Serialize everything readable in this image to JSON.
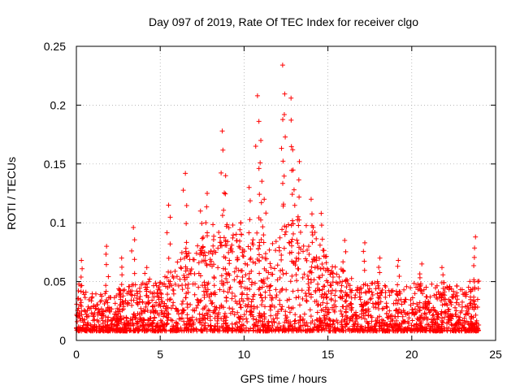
{
  "chart_data": {
    "type": "scatter",
    "title": "Day 097 of 2019, Rate Of TEC Index for receiver clgo",
    "xlabel": "GPS time / hours",
    "ylabel": "ROTI / TECUs",
    "xlim": [
      0,
      25
    ],
    "ylim": [
      0,
      0.25
    ],
    "xticks": [
      0,
      5,
      10,
      15,
      20,
      25
    ],
    "xtick_labels": [
      "0",
      "5",
      "10",
      "15",
      "20",
      "25"
    ],
    "yticks": [
      0,
      0.05,
      0.1,
      0.15,
      0.2,
      0.25
    ],
    "ytick_labels": [
      "0",
      "0.05",
      "0.1",
      "0.15",
      "0.2",
      "0.25"
    ],
    "grid": true,
    "marker": "+",
    "series": [
      {
        "name": "ROTI",
        "color": "#ff0000",
        "baseline_profile": {
          "x": [
            0,
            1,
            2,
            3,
            4,
            5,
            6,
            7,
            8,
            9,
            10,
            11,
            12,
            13,
            14,
            15,
            16,
            17,
            18,
            19,
            20,
            21,
            22,
            23,
            24
          ],
          "typical_max": [
            0.05,
            0.04,
            0.04,
            0.05,
            0.055,
            0.05,
            0.07,
            0.09,
            0.1,
            0.1,
            0.1,
            0.1,
            0.09,
            0.11,
            0.1,
            0.07,
            0.06,
            0.05,
            0.05,
            0.045,
            0.05,
            0.05,
            0.05,
            0.045,
            0.06
          ]
        },
        "peaks": [
          {
            "x": 0.3,
            "y": 0.068
          },
          {
            "x": 1.8,
            "y": 0.08
          },
          {
            "x": 2.7,
            "y": 0.07
          },
          {
            "x": 3.4,
            "y": 0.096
          },
          {
            "x": 4.2,
            "y": 0.062
          },
          {
            "x": 5.5,
            "y": 0.115
          },
          {
            "x": 6.5,
            "y": 0.142
          },
          {
            "x": 7.4,
            "y": 0.11
          },
          {
            "x": 7.8,
            "y": 0.125
          },
          {
            "x": 8.7,
            "y": 0.178
          },
          {
            "x": 8.9,
            "y": 0.14
          },
          {
            "x": 9.8,
            "y": 0.1
          },
          {
            "x": 10.3,
            "y": 0.13
          },
          {
            "x": 10.8,
            "y": 0.208
          },
          {
            "x": 11.0,
            "y": 0.17
          },
          {
            "x": 11.2,
            "y": 0.12
          },
          {
            "x": 12.3,
            "y": 0.234
          },
          {
            "x": 12.4,
            "y": 0.192
          },
          {
            "x": 12.8,
            "y": 0.206
          },
          {
            "x": 12.9,
            "y": 0.162
          },
          {
            "x": 13.3,
            "y": 0.152
          },
          {
            "x": 14.0,
            "y": 0.12
          },
          {
            "x": 14.6,
            "y": 0.108
          },
          {
            "x": 16.0,
            "y": 0.085
          },
          {
            "x": 17.2,
            "y": 0.083
          },
          {
            "x": 18.1,
            "y": 0.07
          },
          {
            "x": 19.2,
            "y": 0.068
          },
          {
            "x": 20.6,
            "y": 0.065
          },
          {
            "x": 21.8,
            "y": 0.062
          },
          {
            "x": 23.8,
            "y": 0.088
          }
        ]
      }
    ]
  }
}
